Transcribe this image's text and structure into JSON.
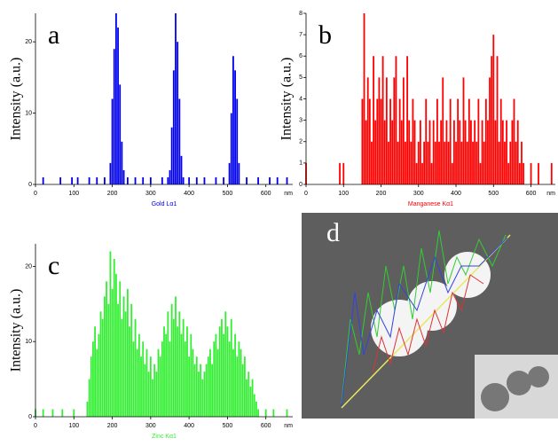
{
  "chart_data": [
    {
      "type": "bar",
      "label": "a",
      "y_label": "Intensity (a.u.)",
      "x_label": "Gold Lα1",
      "x_unit": "nm",
      "color": "#0000ee",
      "xlim": [
        0,
        670
      ],
      "xticks": [
        0,
        100,
        200,
        300,
        400,
        500,
        600
      ],
      "ylim": [
        0,
        24
      ],
      "yticks": [
        0,
        10,
        20
      ],
      "x": [
        20,
        65,
        95,
        110,
        140,
        160,
        180,
        195,
        200,
        205,
        210,
        215,
        220,
        225,
        230,
        240,
        260,
        280,
        300,
        330,
        345,
        350,
        355,
        360,
        365,
        370,
        375,
        380,
        385,
        400,
        420,
        440,
        470,
        490,
        505,
        510,
        515,
        520,
        525,
        530,
        550,
        580,
        610,
        630,
        655
      ],
      "values": [
        1,
        1,
        1,
        1,
        1,
        1,
        1,
        3,
        12,
        19,
        24,
        22,
        14,
        6,
        2,
        1,
        1,
        1,
        1,
        1,
        1,
        2,
        8,
        16,
        24,
        20,
        12,
        4,
        1,
        1,
        1,
        1,
        1,
        1,
        3,
        10,
        18,
        16,
        12,
        3,
        1,
        1,
        1,
        1,
        1
      ]
    },
    {
      "type": "bar",
      "label": "b",
      "y_label": "Intensity (a.u.)",
      "x_label": "Manganese Kα1",
      "x_unit": "nm",
      "color": "#ff0000",
      "xlim": [
        0,
        665
      ],
      "xticks": [
        0,
        100,
        200,
        300,
        400,
        500,
        600
      ],
      "ylim": [
        0,
        8
      ],
      "yticks": [
        0,
        1,
        2,
        3,
        4,
        5,
        6,
        7,
        8
      ],
      "x": [
        0,
        90,
        100,
        150,
        155,
        160,
        165,
        170,
        175,
        180,
        185,
        190,
        195,
        200,
        205,
        210,
        215,
        220,
        225,
        230,
        235,
        240,
        245,
        250,
        255,
        260,
        265,
        270,
        275,
        280,
        285,
        290,
        295,
        300,
        305,
        310,
        315,
        320,
        325,
        330,
        335,
        340,
        345,
        350,
        355,
        360,
        365,
        370,
        375,
        380,
        385,
        390,
        395,
        400,
        405,
        410,
        415,
        420,
        425,
        430,
        435,
        440,
        445,
        450,
        455,
        460,
        465,
        470,
        475,
        480,
        485,
        490,
        495,
        500,
        505,
        510,
        515,
        520,
        525,
        530,
        535,
        540,
        545,
        550,
        555,
        560,
        565,
        570,
        575,
        580,
        600,
        620,
        655
      ],
      "values": [
        1,
        1,
        1,
        4,
        8,
        3,
        5,
        4,
        2,
        6,
        3,
        4,
        5,
        4,
        6,
        3,
        5,
        2,
        4,
        3,
        5,
        6,
        2,
        4,
        3,
        5,
        2,
        6,
        3,
        2,
        4,
        3,
        1,
        2,
        3,
        1,
        2,
        4,
        2,
        3,
        1,
        3,
        2,
        4,
        2,
        3,
        5,
        2,
        3,
        2,
        4,
        1,
        3,
        2,
        4,
        3,
        2,
        5,
        3,
        2,
        4,
        3,
        2,
        3,
        2,
        4,
        1,
        3,
        2,
        4,
        3,
        5,
        6,
        7,
        3,
        6,
        2,
        4,
        3,
        2,
        3,
        1,
        2,
        3,
        4,
        2,
        3,
        1,
        2,
        1,
        1,
        1,
        1
      ]
    },
    {
      "type": "bar",
      "label": "c",
      "y_label": "Intensity (a.u.)",
      "x_label": "Zinc Kα1",
      "x_unit": "nm",
      "color": "#33ee33",
      "xlim": [
        0,
        670
      ],
      "xticks": [
        0,
        100,
        200,
        300,
        400,
        500,
        600
      ],
      "ylim": [
        0,
        23
      ],
      "yticks": [
        0,
        10,
        20
      ],
      "x": [
        0,
        20,
        45,
        70,
        100,
        135,
        140,
        145,
        150,
        155,
        160,
        165,
        170,
        175,
        180,
        185,
        190,
        195,
        200,
        205,
        210,
        215,
        220,
        225,
        230,
        235,
        240,
        245,
        250,
        255,
        260,
        265,
        270,
        275,
        280,
        285,
        290,
        295,
        300,
        305,
        310,
        315,
        320,
        325,
        330,
        335,
        340,
        345,
        350,
        355,
        360,
        365,
        370,
        375,
        380,
        385,
        390,
        395,
        400,
        405,
        410,
        415,
        420,
        425,
        430,
        435,
        440,
        445,
        450,
        455,
        460,
        465,
        470,
        475,
        480,
        485,
        490,
        495,
        500,
        505,
        510,
        515,
        520,
        525,
        530,
        535,
        540,
        545,
        550,
        555,
        560,
        565,
        570,
        575,
        580,
        600,
        620,
        655
      ],
      "values": [
        1,
        1,
        1,
        1,
        1,
        2,
        5,
        8,
        10,
        12,
        9,
        11,
        14,
        13,
        16,
        18,
        15,
        22,
        17,
        21,
        19,
        15,
        18,
        13,
        16,
        14,
        17,
        12,
        15,
        10,
        13,
        9,
        11,
        8,
        10,
        7,
        9,
        6,
        8,
        5,
        7,
        6,
        9,
        8,
        10,
        12,
        11,
        14,
        10,
        15,
        13,
        16,
        12,
        14,
        11,
        13,
        10,
        12,
        8,
        11,
        9,
        7,
        8,
        6,
        7,
        5,
        6,
        7,
        8,
        9,
        7,
        10,
        11,
        9,
        12,
        13,
        11,
        14,
        12,
        10,
        13,
        9,
        11,
        8,
        10,
        9,
        7,
        8,
        5,
        6,
        4,
        5,
        3,
        2,
        1,
        1,
        1,
        1
      ]
    }
  ],
  "image_panel": {
    "label": "d"
  }
}
